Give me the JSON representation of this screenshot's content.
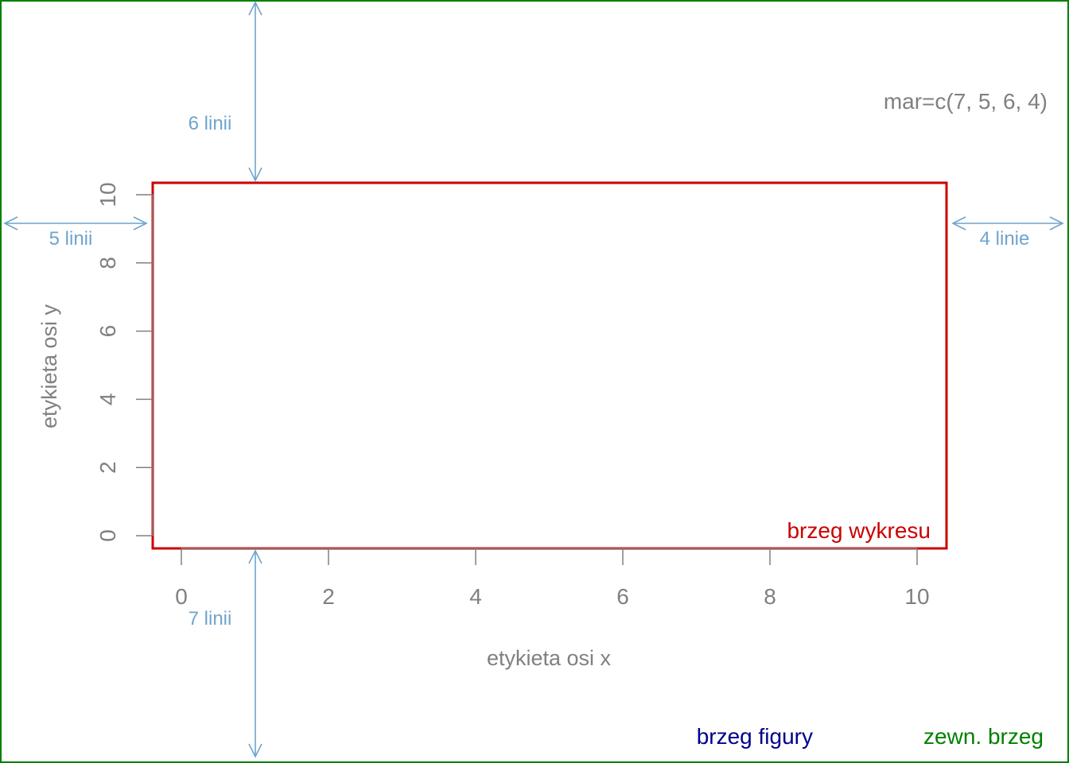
{
  "colors": {
    "outer_border": "#008000",
    "plot_border": "#cc0000",
    "figure_label": "#00008b",
    "outer_label": "#008000",
    "axis": "#808080",
    "annotation": "#6fa4cc"
  },
  "margins": {
    "setting": "mar=c(7, 5, 6, 4)",
    "top": "6 linii",
    "left": "5 linii",
    "right": "4 linie",
    "bottom": "7 linii"
  },
  "labels": {
    "plot_region": "brzeg wykresu",
    "figure_region": "brzeg figury",
    "outer_region": "zewn. brzeg"
  },
  "axes": {
    "xlabel": "etykieta osi x",
    "ylabel": "etykieta osi y",
    "xlim": [
      0,
      10
    ],
    "ylim": [
      0,
      10
    ],
    "x_ticks": [
      "0",
      "2",
      "4",
      "6",
      "8",
      "10"
    ],
    "y_ticks": [
      "0",
      "2",
      "4",
      "6",
      "8",
      "10"
    ]
  }
}
